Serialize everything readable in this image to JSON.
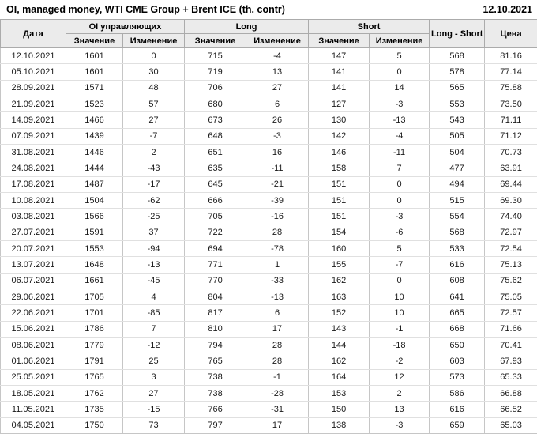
{
  "title": "OI, managed money, WTI CME Group + Brent ICE (th. contr)",
  "report_date": "12.10.2021",
  "colors": {
    "positive": "#008800",
    "negative": "#cc0000",
    "neutral": "#1a1a1a",
    "header_bg": "#ebebeb"
  },
  "table": {
    "header": {
      "date": "Дата",
      "oi_group": "OI управляющих",
      "long_group": "Long",
      "short_group": "Short",
      "long_short": "Long - Short",
      "price": "Цена",
      "value": "Значение",
      "change": "Изменение"
    },
    "rows": [
      {
        "date": "12.10.2021",
        "oi": "1601",
        "oi_chg": {
          "v": "0",
          "c": "zero"
        },
        "long": "715",
        "long_chg": {
          "v": "-4",
          "c": "neg"
        },
        "short": "147",
        "short_chg": {
          "v": "5",
          "c": "pos"
        },
        "long_short": "568",
        "price": "81.16"
      },
      {
        "date": "05.10.2021",
        "oi": "1601",
        "oi_chg": {
          "v": "30",
          "c": "pos"
        },
        "long": "719",
        "long_chg": {
          "v": "13",
          "c": "pos"
        },
        "short": "141",
        "short_chg": {
          "v": "0",
          "c": "neg"
        },
        "long_short": "578",
        "price": "77.14"
      },
      {
        "date": "28.09.2021",
        "oi": "1571",
        "oi_chg": {
          "v": "48",
          "c": "pos"
        },
        "long": "706",
        "long_chg": {
          "v": "27",
          "c": "pos"
        },
        "short": "141",
        "short_chg": {
          "v": "14",
          "c": "pos"
        },
        "long_short": "565",
        "price": "75.88"
      },
      {
        "date": "21.09.2021",
        "oi": "1523",
        "oi_chg": {
          "v": "57",
          "c": "pos"
        },
        "long": "680",
        "long_chg": {
          "v": "6",
          "c": "pos"
        },
        "short": "127",
        "short_chg": {
          "v": "-3",
          "c": "neg"
        },
        "long_short": "553",
        "price": "73.50"
      },
      {
        "date": "14.09.2021",
        "oi": "1466",
        "oi_chg": {
          "v": "27",
          "c": "pos"
        },
        "long": "673",
        "long_chg": {
          "v": "26",
          "c": "pos"
        },
        "short": "130",
        "short_chg": {
          "v": "-13",
          "c": "neg"
        },
        "long_short": "543",
        "price": "71.11"
      },
      {
        "date": "07.09.2021",
        "oi": "1439",
        "oi_chg": {
          "v": "-7",
          "c": "neg"
        },
        "long": "648",
        "long_chg": {
          "v": "-3",
          "c": "neg"
        },
        "short": "142",
        "short_chg": {
          "v": "-4",
          "c": "neg"
        },
        "long_short": "505",
        "price": "71.12"
      },
      {
        "date": "31.08.2021",
        "oi": "1446",
        "oi_chg": {
          "v": "2",
          "c": "pos"
        },
        "long": "651",
        "long_chg": {
          "v": "16",
          "c": "pos"
        },
        "short": "146",
        "short_chg": {
          "v": "-11",
          "c": "neg"
        },
        "long_short": "504",
        "price": "70.73"
      },
      {
        "date": "24.08.2021",
        "oi": "1444",
        "oi_chg": {
          "v": "-43",
          "c": "neg"
        },
        "long": "635",
        "long_chg": {
          "v": "-11",
          "c": "neg"
        },
        "short": "158",
        "short_chg": {
          "v": "7",
          "c": "pos"
        },
        "long_short": "477",
        "price": "63.91"
      },
      {
        "date": "17.08.2021",
        "oi": "1487",
        "oi_chg": {
          "v": "-17",
          "c": "neg"
        },
        "long": "645",
        "long_chg": {
          "v": "-21",
          "c": "neg"
        },
        "short": "151",
        "short_chg": {
          "v": "0",
          "c": "neg"
        },
        "long_short": "494",
        "price": "69.44"
      },
      {
        "date": "10.08.2021",
        "oi": "1504",
        "oi_chg": {
          "v": "-62",
          "c": "neg"
        },
        "long": "666",
        "long_chg": {
          "v": "-39",
          "c": "neg"
        },
        "short": "151",
        "short_chg": {
          "v": "0",
          "c": "pos"
        },
        "long_short": "515",
        "price": "69.30"
      },
      {
        "date": "03.08.2021",
        "oi": "1566",
        "oi_chg": {
          "v": "-25",
          "c": "neg"
        },
        "long": "705",
        "long_chg": {
          "v": "-16",
          "c": "neg"
        },
        "short": "151",
        "short_chg": {
          "v": "-3",
          "c": "neg"
        },
        "long_short": "554",
        "price": "74.40"
      },
      {
        "date": "27.07.2021",
        "oi": "1591",
        "oi_chg": {
          "v": "37",
          "c": "pos"
        },
        "long": "722",
        "long_chg": {
          "v": "28",
          "c": "pos"
        },
        "short": "154",
        "short_chg": {
          "v": "-6",
          "c": "neg"
        },
        "long_short": "568",
        "price": "72.97"
      },
      {
        "date": "20.07.2021",
        "oi": "1553",
        "oi_chg": {
          "v": "-94",
          "c": "neg"
        },
        "long": "694",
        "long_chg": {
          "v": "-78",
          "c": "neg"
        },
        "short": "160",
        "short_chg": {
          "v": "5",
          "c": "pos"
        },
        "long_short": "533",
        "price": "72.54"
      },
      {
        "date": "13.07.2021",
        "oi": "1648",
        "oi_chg": {
          "v": "-13",
          "c": "neg"
        },
        "long": "771",
        "long_chg": {
          "v": "1",
          "c": "pos"
        },
        "short": "155",
        "short_chg": {
          "v": "-7",
          "c": "neg"
        },
        "long_short": "616",
        "price": "75.13"
      },
      {
        "date": "06.07.2021",
        "oi": "1661",
        "oi_chg": {
          "v": "-45",
          "c": "neg"
        },
        "long": "770",
        "long_chg": {
          "v": "-33",
          "c": "neg"
        },
        "short": "162",
        "short_chg": {
          "v": "0",
          "c": "neg"
        },
        "long_short": "608",
        "price": "75.62"
      },
      {
        "date": "29.06.2021",
        "oi": "1705",
        "oi_chg": {
          "v": "4",
          "c": "pos"
        },
        "long": "804",
        "long_chg": {
          "v": "-13",
          "c": "neg"
        },
        "short": "163",
        "short_chg": {
          "v": "10",
          "c": "pos"
        },
        "long_short": "641",
        "price": "75.05"
      },
      {
        "date": "22.06.2021",
        "oi": "1701",
        "oi_chg": {
          "v": "-85",
          "c": "neg"
        },
        "long": "817",
        "long_chg": {
          "v": "6",
          "c": "pos"
        },
        "short": "152",
        "short_chg": {
          "v": "10",
          "c": "pos"
        },
        "long_short": "665",
        "price": "72.57"
      },
      {
        "date": "15.06.2021",
        "oi": "1786",
        "oi_chg": {
          "v": "7",
          "c": "pos"
        },
        "long": "810",
        "long_chg": {
          "v": "17",
          "c": "pos"
        },
        "short": "143",
        "short_chg": {
          "v": "-1",
          "c": "neg"
        },
        "long_short": "668",
        "price": "71.66"
      },
      {
        "date": "08.06.2021",
        "oi": "1779",
        "oi_chg": {
          "v": "-12",
          "c": "neg"
        },
        "long": "794",
        "long_chg": {
          "v": "28",
          "c": "pos"
        },
        "short": "144",
        "short_chg": {
          "v": "-18",
          "c": "neg"
        },
        "long_short": "650",
        "price": "70.41"
      },
      {
        "date": "01.06.2021",
        "oi": "1791",
        "oi_chg": {
          "v": "25",
          "c": "pos"
        },
        "long": "765",
        "long_chg": {
          "v": "28",
          "c": "pos"
        },
        "short": "162",
        "short_chg": {
          "v": "-2",
          "c": "neg"
        },
        "long_short": "603",
        "price": "67.93"
      },
      {
        "date": "25.05.2021",
        "oi": "1765",
        "oi_chg": {
          "v": "3",
          "c": "pos"
        },
        "long": "738",
        "long_chg": {
          "v": "-1",
          "c": "neg"
        },
        "short": "164",
        "short_chg": {
          "v": "12",
          "c": "pos"
        },
        "long_short": "573",
        "price": "65.33"
      },
      {
        "date": "18.05.2021",
        "oi": "1762",
        "oi_chg": {
          "v": "27",
          "c": "pos"
        },
        "long": "738",
        "long_chg": {
          "v": "-28",
          "c": "neg"
        },
        "short": "153",
        "short_chg": {
          "v": "2",
          "c": "pos"
        },
        "long_short": "586",
        "price": "66.88"
      },
      {
        "date": "11.05.2021",
        "oi": "1735",
        "oi_chg": {
          "v": "-15",
          "c": "neg"
        },
        "long": "766",
        "long_chg": {
          "v": "-31",
          "c": "neg"
        },
        "short": "150",
        "short_chg": {
          "v": "13",
          "c": "pos"
        },
        "long_short": "616",
        "price": "66.52"
      },
      {
        "date": "04.05.2021",
        "oi": "1750",
        "oi_chg": {
          "v": "73",
          "c": "pos"
        },
        "long": "797",
        "long_chg": {
          "v": "17",
          "c": "pos"
        },
        "short": "138",
        "short_chg": {
          "v": "-3",
          "c": "neg"
        },
        "long_short": "659",
        "price": "65.03"
      }
    ]
  }
}
